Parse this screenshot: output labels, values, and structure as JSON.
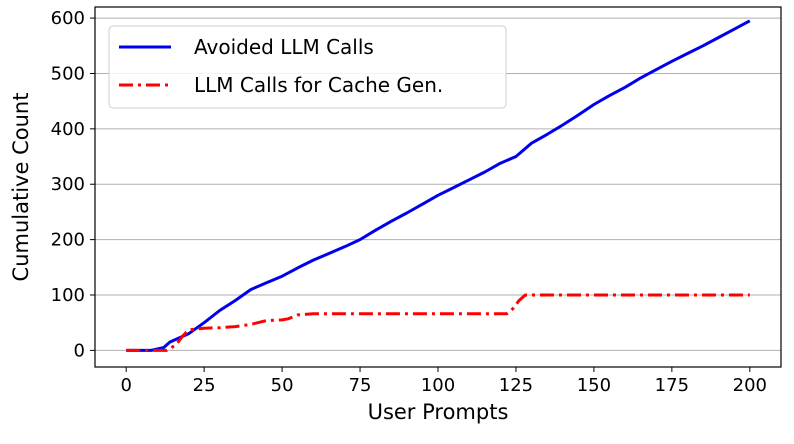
{
  "chart_data": {
    "type": "line",
    "title": "",
    "xlabel": "User Prompts",
    "ylabel": "Cumulative Count",
    "xlim": [
      -10,
      210
    ],
    "ylim": [
      -30,
      620
    ],
    "xticks": [
      0,
      25,
      50,
      75,
      100,
      125,
      150,
      175,
      200
    ],
    "yticks": [
      0,
      100,
      200,
      300,
      400,
      500,
      600
    ],
    "grid": "horizontal",
    "legend_position": "top-left",
    "series": [
      {
        "name": "Avoided LLM Calls",
        "color": "#0000ee",
        "line_style": "solid",
        "x": [
          0,
          8,
          12,
          14,
          16,
          20,
          25,
          30,
          35,
          40,
          45,
          50,
          55,
          60,
          65,
          70,
          75,
          80,
          85,
          90,
          95,
          100,
          105,
          110,
          115,
          120,
          125,
          130,
          135,
          140,
          145,
          150,
          155,
          160,
          165,
          170,
          175,
          180,
          185,
          190,
          195,
          200
        ],
        "y": [
          0,
          0,
          5,
          15,
          20,
          30,
          50,
          72,
          90,
          110,
          122,
          134,
          149,
          163,
          175,
          187,
          200,
          217,
          233,
          248,
          264,
          280,
          294,
          308,
          322,
          338,
          350,
          374,
          390,
          407,
          425,
          444,
          460,
          475,
          492,
          507,
          522,
          536,
          550,
          565,
          580,
          595
        ]
      },
      {
        "name": "LLM Calls for Cache Gen.",
        "color": "#ff0000",
        "line_style": "dashdot",
        "x": [
          0,
          13,
          16,
          18,
          20,
          25,
          30,
          35,
          40,
          45,
          50,
          52,
          55,
          60,
          100,
          122,
          124,
          126,
          128,
          150,
          200
        ],
        "y": [
          0,
          0,
          10,
          25,
          37,
          40,
          41,
          43,
          47,
          54,
          55,
          57,
          64,
          66,
          66,
          66,
          75,
          90,
          100,
          100,
          100
        ]
      }
    ]
  }
}
